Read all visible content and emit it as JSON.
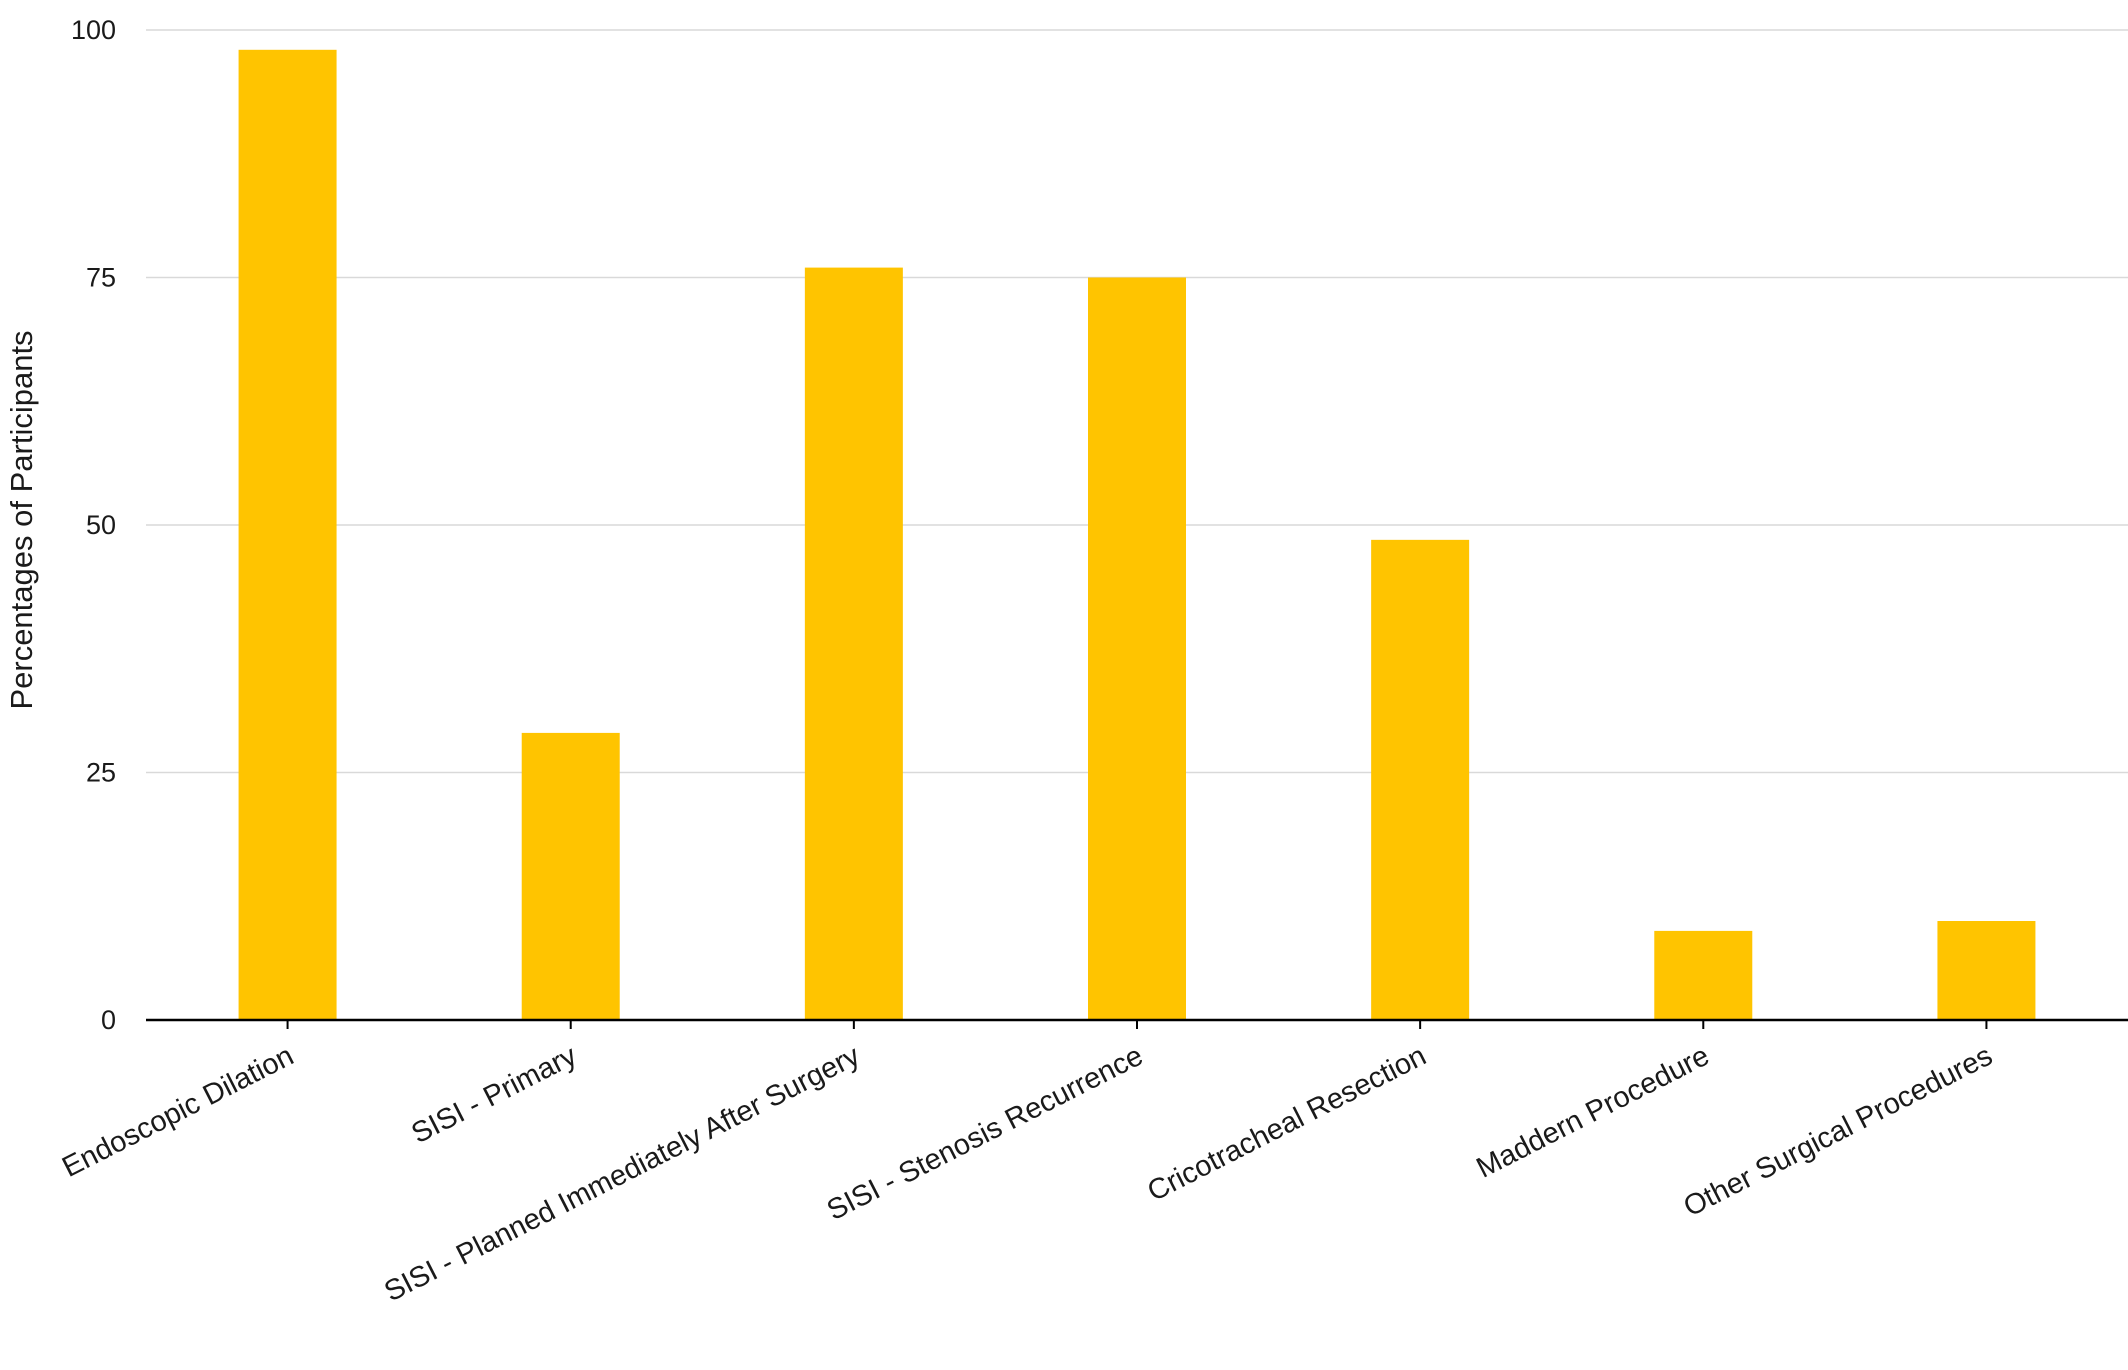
{
  "chart_data": {
    "type": "bar",
    "title": "",
    "xlabel": "",
    "ylabel": "Percentages of Participants",
    "ylim": [
      0,
      100
    ],
    "yticks": [
      0,
      25,
      50,
      75,
      100
    ],
    "grid": true,
    "categories": [
      "Endoscopic Dilation",
      "SISI - Primary",
      "SISI - Planned Immediately After Surgery",
      "SISI - Stenosis Recurrence",
      "Cricotracheal Resection",
      "Maddern Procedure",
      "Other Surgical Procedures"
    ],
    "values": [
      98,
      29,
      76,
      75,
      48.5,
      9,
      10
    ],
    "bar_color": "#FFC400",
    "grid_color": "#D9D9D9",
    "axis_color": "#000000"
  }
}
